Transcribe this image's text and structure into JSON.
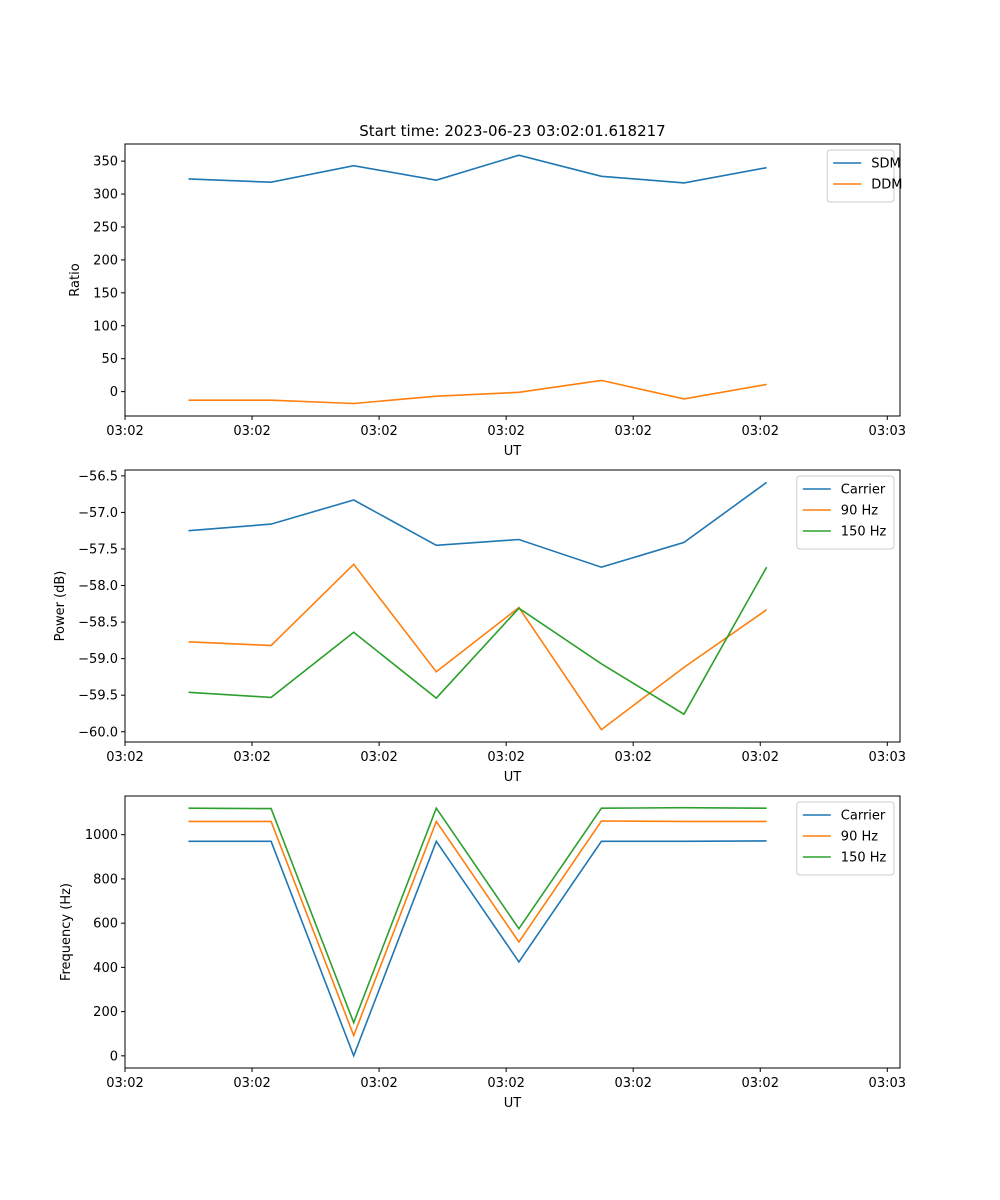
{
  "figure": {
    "title": "Start time: 2023-06-23 03:02:01.618217"
  },
  "colors": {
    "blue": "#1f77b4",
    "orange": "#ff7f0e",
    "green": "#2ca02c"
  },
  "chart_data": [
    {
      "type": "line",
      "title": "Start time: 2023-06-23 03:02:01.618217",
      "xlabel": "UT",
      "ylabel": "Ratio",
      "xticks": [
        "03:02",
        "03:02",
        "03:02",
        "03:02",
        "03:02",
        "03:02",
        "03:03"
      ],
      "xlim": [
        0,
        6.1
      ],
      "x": [
        0.5,
        1.15,
        1.8,
        2.45,
        3.1,
        3.75,
        4.4,
        5.05
      ],
      "ylim": [
        -37,
        376
      ],
      "yticks": [
        0,
        50,
        100,
        150,
        200,
        250,
        300,
        350
      ],
      "legend": "top-right",
      "series": [
        {
          "name": "SDM",
          "color": "#1f77b4",
          "values": [
            323,
            318,
            343,
            321,
            359,
            327,
            317,
            340
          ]
        },
        {
          "name": "DDM",
          "color": "#ff7f0e",
          "values": [
            -13,
            -13,
            -18,
            -7,
            -1,
            17,
            -11,
            11
          ]
        }
      ]
    },
    {
      "type": "line",
      "xlabel": "UT",
      "ylabel": "Power (dB)",
      "xticks": [
        "03:02",
        "03:02",
        "03:02",
        "03:02",
        "03:02",
        "03:02",
        "03:03"
      ],
      "xlim": [
        0,
        6.1
      ],
      "x": [
        0.5,
        1.15,
        1.8,
        2.45,
        3.1,
        3.75,
        4.4,
        5.05
      ],
      "ylim": [
        -60.14,
        -56.42
      ],
      "yticks": [
        -60.0,
        -59.5,
        -59.0,
        -58.5,
        -58.0,
        -57.5,
        -57.0,
        -56.5
      ],
      "legend": "top-right",
      "series": [
        {
          "name": "Carrier",
          "color": "#1f77b4",
          "values": [
            -57.25,
            -57.16,
            -56.83,
            -57.45,
            -57.37,
            -57.75,
            -57.41,
            -56.59
          ]
        },
        {
          "name": "90 Hz",
          "color": "#ff7f0e",
          "values": [
            -58.77,
            -58.82,
            -57.71,
            -59.18,
            -58.3,
            -59.97,
            -59.12,
            -58.33
          ]
        },
        {
          "name": "150 Hz",
          "color": "#2ca02c",
          "values": [
            -59.46,
            -59.53,
            -58.64,
            -59.54,
            -58.31,
            -59.07,
            -59.76,
            -57.75
          ]
        }
      ]
    },
    {
      "type": "line",
      "xlabel": "UT",
      "ylabel": "Frequency (Hz)",
      "xticks": [
        "03:02",
        "03:02",
        "03:02",
        "03:02",
        "03:02",
        "03:02",
        "03:03"
      ],
      "xlim": [
        0,
        6.1
      ],
      "x": [
        0.5,
        1.15,
        1.8,
        2.45,
        3.1,
        3.75,
        4.4,
        5.05
      ],
      "ylim": [
        -55,
        1175
      ],
      "yticks": [
        0,
        200,
        400,
        600,
        800,
        1000
      ],
      "legend": "top-right",
      "series": [
        {
          "name": "Carrier",
          "color": "#1f77b4",
          "values": [
            970,
            970,
            0,
            970,
            425,
            970,
            970,
            972
          ]
        },
        {
          "name": "90 Hz",
          "color": "#ff7f0e",
          "values": [
            1060,
            1060,
            92,
            1060,
            515,
            1062,
            1060,
            1060
          ]
        },
        {
          "name": "150 Hz",
          "color": "#2ca02c",
          "values": [
            1120,
            1118,
            150,
            1120,
            575,
            1120,
            1122,
            1120
          ]
        }
      ]
    }
  ]
}
